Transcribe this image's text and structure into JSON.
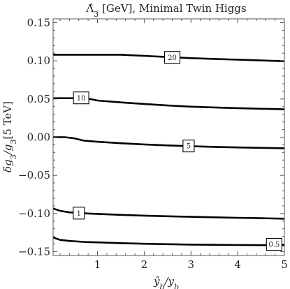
{
  "chart_data": {
    "type": "line",
    "title_parts": [
      "Λ̂",
      "3",
      " [GeV], Minimal Twin Higgs"
    ],
    "xlabel_parts": [
      "ŷ",
      "b",
      "/y",
      "b"
    ],
    "ylabel_parts": [
      "δg",
      "3",
      "/g",
      "3",
      "[5 TeV]"
    ],
    "xlim": [
      0.05,
      5
    ],
    "ylim": [
      -0.155,
      0.155
    ],
    "x_ticks": [
      1,
      2,
      3,
      4,
      5
    ],
    "x_tick_labels": [
      "1",
      "2",
      "3",
      "4",
      "5"
    ],
    "y_ticks": [
      -0.15,
      -0.1,
      -0.05,
      0.0,
      0.05,
      0.1,
      0.15
    ],
    "y_tick_labels": [
      "−0.15",
      "−0.10",
      "−0.05",
      "0.00",
      "0.05",
      "0.10",
      "0.15"
    ],
    "grid": false,
    "series": [
      {
        "name": "20",
        "label_at": [
          2.6,
          0.1045
        ],
        "points": [
          [
            0.05,
            0.108
          ],
          [
            0.5,
            0.108
          ],
          [
            1.0,
            0.108
          ],
          [
            1.5,
            0.108
          ],
          [
            2.0,
            0.1065
          ],
          [
            2.5,
            0.105
          ],
          [
            3.0,
            0.1035
          ],
          [
            3.5,
            0.1025
          ],
          [
            4.0,
            0.1015
          ],
          [
            4.5,
            0.1005
          ],
          [
            5.0,
            0.0995
          ]
        ]
      },
      {
        "name": "10",
        "label_at": [
          0.65,
          0.0515
        ],
        "points": [
          [
            0.05,
            0.051
          ],
          [
            0.5,
            0.051
          ],
          [
            0.8,
            0.0505
          ],
          [
            1.0,
            0.048
          ],
          [
            1.5,
            0.0455
          ],
          [
            2.0,
            0.0435
          ],
          [
            2.5,
            0.0415
          ],
          [
            3.0,
            0.04
          ],
          [
            3.5,
            0.039
          ],
          [
            4.0,
            0.038
          ],
          [
            4.5,
            0.0372
          ],
          [
            5.0,
            0.0365
          ]
        ]
      },
      {
        "name": "5",
        "label_at": [
          2.95,
          -0.0115
        ],
        "points": [
          [
            0.05,
            0.0
          ],
          [
            0.3,
            0.0
          ],
          [
            0.5,
            -0.0015
          ],
          [
            0.7,
            -0.0045
          ],
          [
            1.0,
            -0.006
          ],
          [
            1.5,
            -0.008
          ],
          [
            2.0,
            -0.0095
          ],
          [
            2.5,
            -0.0108
          ],
          [
            3.0,
            -0.0118
          ],
          [
            3.5,
            -0.0127
          ],
          [
            4.0,
            -0.0134
          ],
          [
            4.5,
            -0.014
          ],
          [
            5.0,
            -0.0145
          ]
        ]
      },
      {
        "name": "1",
        "label_at": [
          0.6,
          -0.0995
        ],
        "points": [
          [
            0.05,
            -0.0935
          ],
          [
            0.2,
            -0.0965
          ],
          [
            0.4,
            -0.0985
          ],
          [
            0.7,
            -0.0998
          ],
          [
            1.0,
            -0.1005
          ],
          [
            1.5,
            -0.1018
          ],
          [
            2.0,
            -0.1028
          ],
          [
            2.5,
            -0.1036
          ],
          [
            3.0,
            -0.1043
          ],
          [
            3.5,
            -0.105
          ],
          [
            4.0,
            -0.1056
          ],
          [
            4.5,
            -0.1062
          ],
          [
            5.0,
            -0.1068
          ]
        ]
      },
      {
        "name": "0.5",
        "label_at": [
          4.78,
          -0.1405
        ],
        "points": [
          [
            0.05,
            -0.1315
          ],
          [
            0.2,
            -0.1345
          ],
          [
            0.4,
            -0.136
          ],
          [
            0.7,
            -0.1372
          ],
          [
            1.0,
            -0.1378
          ],
          [
            1.5,
            -0.1388
          ],
          [
            2.0,
            -0.1396
          ],
          [
            2.5,
            -0.1402
          ],
          [
            3.0,
            -0.1407
          ],
          [
            3.5,
            -0.141
          ],
          [
            4.0,
            -0.1413
          ],
          [
            4.5,
            -0.1415
          ],
          [
            5.0,
            -0.1416
          ]
        ]
      }
    ]
  }
}
